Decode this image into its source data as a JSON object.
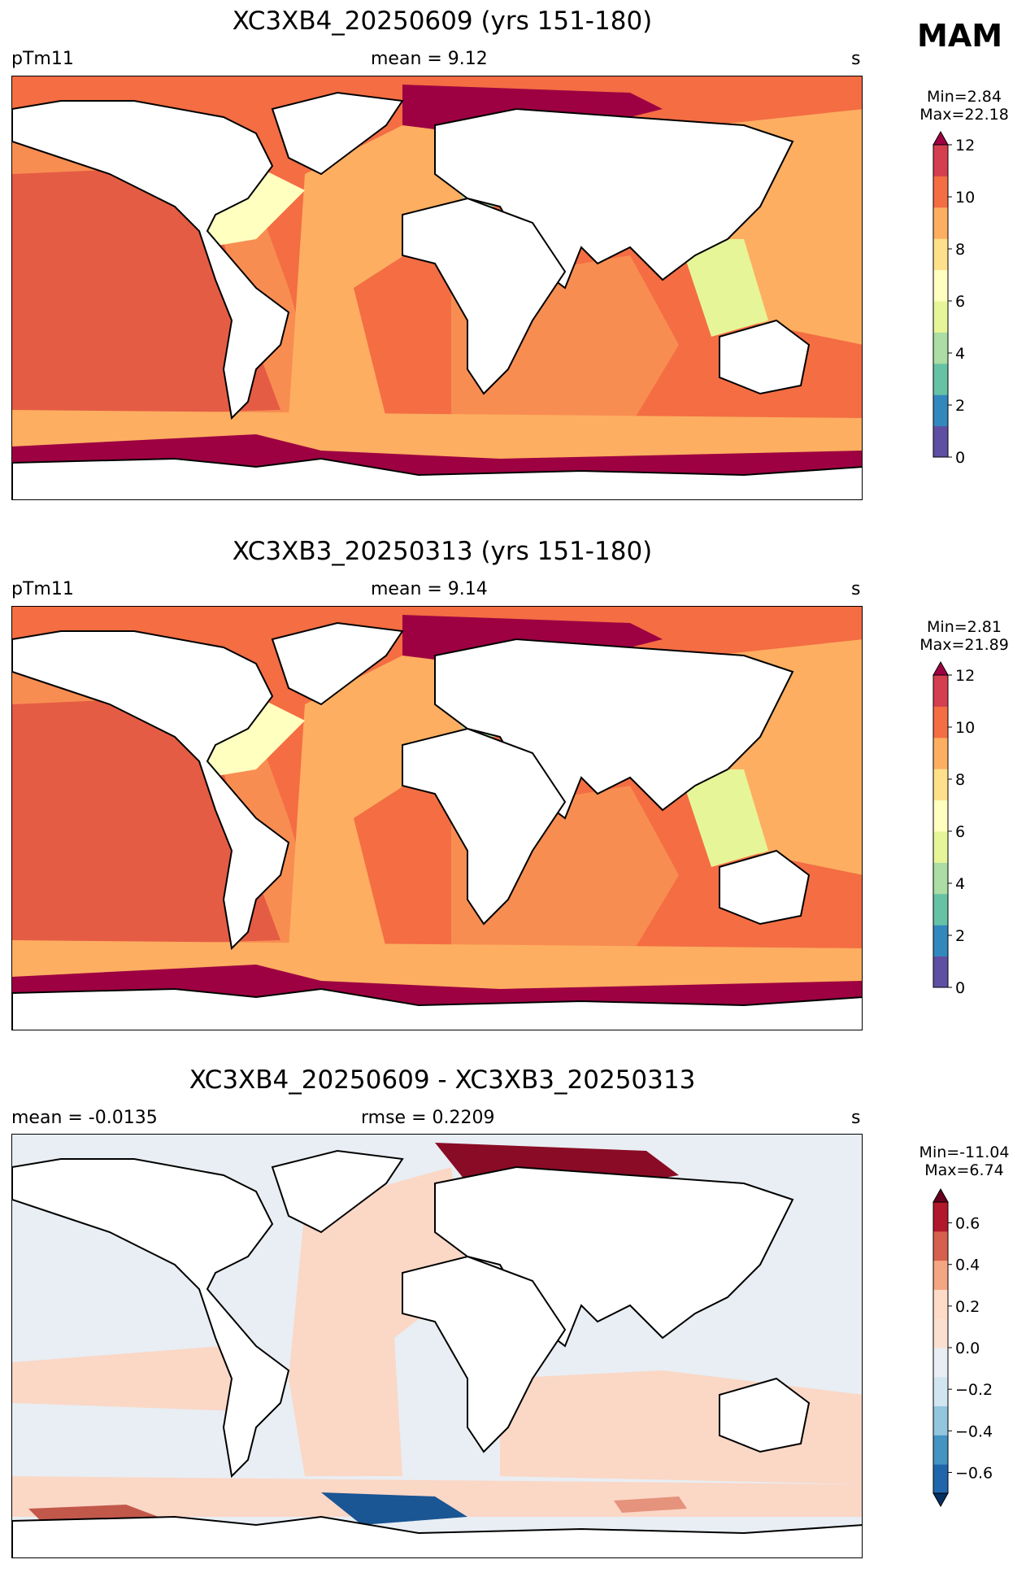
{
  "season": "MAM",
  "cmap_abs": [
    "#5e4fa2",
    "#3288bd",
    "#66c2a5",
    "#abdda4",
    "#e6f598",
    "#ffffbf",
    "#fee08b",
    "#fdae61",
    "#f46d43",
    "#d53e4f",
    "#9e0142"
  ],
  "cmap_diff": [
    "#053061",
    "#2166ac",
    "#4393c3",
    "#92c5de",
    "#d1e5f0",
    "#e8eef3",
    "#fbe0d0",
    "#fddbc7",
    "#f4a582",
    "#d6604d",
    "#b2182b",
    "#67001f"
  ],
  "panels": [
    {
      "title": "XC3XB4_20250609 (yrs 151-180)",
      "left": "pTm11",
      "center": "mean = 9.12",
      "right": "s",
      "min": "Min=2.84",
      "max": "Max=22.18",
      "cbar_ticks": [
        "0",
        "2",
        "4",
        "6",
        "8",
        "10",
        "12"
      ],
      "cbar_tick_values": [
        0,
        2,
        4,
        6,
        8,
        10,
        12
      ],
      "cbar_range": [
        0,
        12
      ]
    },
    {
      "title": "XC3XB3_20250313 (yrs 151-180)",
      "left": "pTm11",
      "center": "mean = 9.14",
      "right": "s",
      "min": "Min=2.81",
      "max": "Max=21.89",
      "cbar_ticks": [
        "0",
        "2",
        "4",
        "6",
        "8",
        "10",
        "12"
      ],
      "cbar_tick_values": [
        0,
        2,
        4,
        6,
        8,
        10,
        12
      ],
      "cbar_range": [
        0,
        12
      ]
    },
    {
      "title": "XC3XB4_20250609 - XC3XB3_20250313",
      "left": "mean = -0.0135",
      "center": "rmse = 0.2209",
      "right": "s",
      "min": "Min=-11.04",
      "max": "Max=6.74",
      "cbar_ticks": [
        "−0.6",
        "−0.4",
        "−0.2",
        "0.0",
        "0.2",
        "0.4",
        "0.6"
      ],
      "cbar_tick_values": [
        -0.6,
        -0.4,
        -0.2,
        0.0,
        0.2,
        0.4,
        0.6
      ],
      "cbar_range": [
        -0.7,
        0.7
      ]
    }
  ]
}
